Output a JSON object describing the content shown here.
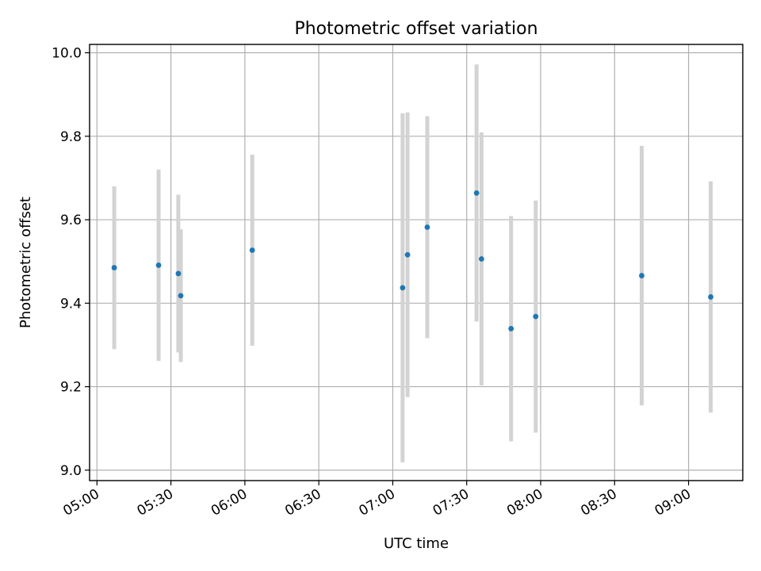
{
  "chart_data": {
    "type": "scatter",
    "title": "Photometric offset variation",
    "xlabel": "UTC time",
    "ylabel": "Photometric offset",
    "x_ticks": [
      "05:00",
      "05:30",
      "06:00",
      "06:30",
      "07:00",
      "07:30",
      "08:00",
      "08:30",
      "09:00"
    ],
    "y_ticks": [
      "9.0",
      "9.2",
      "9.4",
      "9.6",
      "9.8",
      "10.0"
    ],
    "xlim": [
      "04:57",
      "09:22"
    ],
    "ylim": [
      8.975,
      10.02
    ],
    "grid": true,
    "colors": {
      "marker": "#1f77b4",
      "errorbar": "#d3d3d3"
    },
    "series": [
      {
        "points": [
          {
            "x": "05:07",
            "y": 9.485,
            "yerr": 0.195
          },
          {
            "x": "05:25",
            "y": 9.491,
            "yerr": 0.229
          },
          {
            "x": "05:33",
            "y": 9.471,
            "yerr": 0.189
          },
          {
            "x": "05:34",
            "y": 9.418,
            "yerr": 0.159
          },
          {
            "x": "06:03",
            "y": 9.527,
            "yerr": 0.229
          },
          {
            "x": "07:04",
            "y": 9.437,
            "yerr": 0.418
          },
          {
            "x": "07:06",
            "y": 9.516,
            "yerr": 0.341
          },
          {
            "x": "07:14",
            "y": 9.582,
            "yerr": 0.266
          },
          {
            "x": "07:34",
            "y": 9.664,
            "yerr": 0.308
          },
          {
            "x": "07:36",
            "y": 9.506,
            "yerr": 0.303
          },
          {
            "x": "07:48",
            "y": 9.339,
            "yerr": 0.27
          },
          {
            "x": "07:58",
            "y": 9.368,
            "yerr": 0.278
          },
          {
            "x": "08:41",
            "y": 9.466,
            "yerr": 0.311
          },
          {
            "x": "09:09",
            "y": 9.415,
            "yerr": 0.277
          }
        ]
      }
    ]
  }
}
